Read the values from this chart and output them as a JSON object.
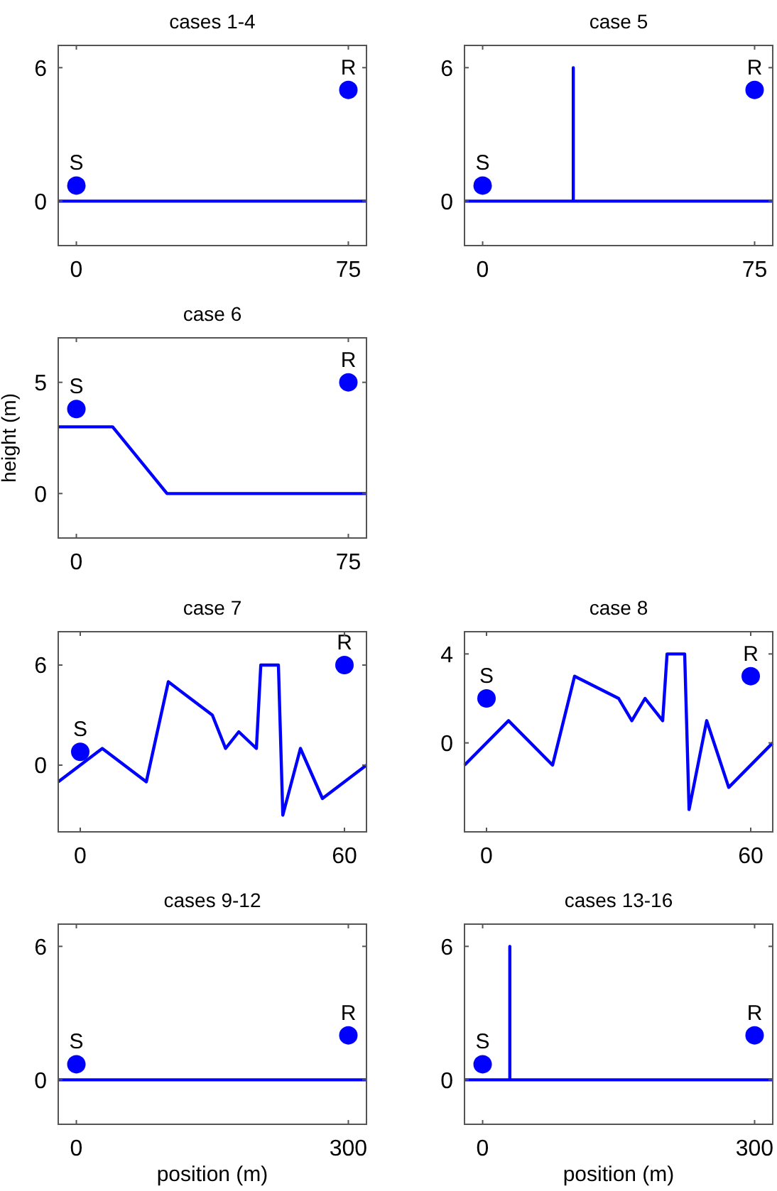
{
  "chart_data": [
    {
      "type": "line",
      "title": "cases 1-4",
      "xlim": [
        -5,
        80
      ],
      "ylim": [
        -2,
        7
      ],
      "xticks": [
        0,
        75
      ],
      "yticks": [
        0,
        6
      ],
      "series": [
        {
          "color": "#0000ff",
          "x": [
            -5,
            80
          ],
          "values": [
            0,
            0
          ]
        },
        {
          "type": "scatter",
          "color": "#0000ff",
          "marker": "circle",
          "x": [
            0,
            75
          ],
          "values": [
            0.7,
            5
          ]
        }
      ],
      "annotations": [
        {
          "text": "S",
          "x": 0,
          "y": 0.7
        },
        {
          "text": "R",
          "x": 75,
          "y": 5
        }
      ]
    },
    {
      "type": "line",
      "title": "case 5",
      "xlim": [
        -5,
        80
      ],
      "ylim": [
        -2,
        7
      ],
      "xticks": [
        0,
        75
      ],
      "yticks": [
        0,
        6
      ],
      "series": [
        {
          "color": "#0000ff",
          "x": [
            -5,
            25,
            25,
            25,
            80
          ],
          "values": [
            0,
            0,
            6,
            0,
            0
          ]
        },
        {
          "type": "scatter",
          "color": "#0000ff",
          "marker": "circle",
          "x": [
            0,
            75
          ],
          "values": [
            0.7,
            5
          ]
        }
      ],
      "annotations": [
        {
          "text": "S",
          "x": 0,
          "y": 0.7
        },
        {
          "text": "R",
          "x": 75,
          "y": 5
        }
      ]
    },
    {
      "type": "line",
      "title": "case 6",
      "ylabel": "height (m)",
      "xlim": [
        -5,
        80
      ],
      "ylim": [
        -2,
        7
      ],
      "xticks": [
        0,
        75
      ],
      "yticks": [
        0,
        5
      ],
      "series": [
        {
          "color": "#0000ff",
          "x": [
            -5,
            10,
            25,
            80
          ],
          "values": [
            3,
            3,
            0,
            0
          ]
        },
        {
          "type": "scatter",
          "color": "#0000ff",
          "marker": "circle",
          "x": [
            0,
            75
          ],
          "values": [
            3.8,
            5
          ]
        }
      ],
      "annotations": [
        {
          "text": "S",
          "x": 0,
          "y": 3.8
        },
        {
          "text": "R",
          "x": 75,
          "y": 5
        }
      ]
    },
    {
      "type": "line",
      "title": "case 7",
      "xlim": [
        -5,
        65
      ],
      "ylim": [
        -4,
        8
      ],
      "xticks": [
        0,
        60
      ],
      "yticks": [
        0,
        6
      ],
      "series": [
        {
          "color": "#0000ff",
          "x": [
            -5,
            5,
            15,
            20,
            30,
            33,
            36,
            40,
            41,
            45,
            46,
            50,
            55,
            65
          ],
          "values": [
            -1,
            1,
            -1,
            5,
            3,
            1,
            2,
            1,
            6,
            6,
            -3,
            1,
            -2,
            0
          ]
        },
        {
          "type": "scatter",
          "color": "#0000ff",
          "marker": "circle",
          "x": [
            0,
            60
          ],
          "values": [
            0.8,
            6
          ]
        }
      ],
      "annotations": [
        {
          "text": "S",
          "x": 0,
          "y": 0.8
        },
        {
          "text": "R",
          "x": 60,
          "y": 6
        }
      ]
    },
    {
      "type": "line",
      "title": "case 8",
      "xlim": [
        -5,
        65
      ],
      "ylim": [
        -4,
        5
      ],
      "xticks": [
        0,
        60
      ],
      "yticks": [
        0,
        4
      ],
      "series": [
        {
          "color": "#0000ff",
          "x": [
            -5,
            5,
            15,
            20,
            30,
            33,
            36,
            40,
            41,
            45,
            46,
            50,
            55,
            65
          ],
          "values": [
            -1,
            1,
            -1,
            3,
            2,
            1,
            2,
            1,
            4,
            4,
            -3,
            1,
            -2,
            0
          ]
        },
        {
          "type": "scatter",
          "color": "#0000ff",
          "marker": "circle",
          "x": [
            0,
            60
          ],
          "values": [
            2,
            3
          ]
        }
      ],
      "annotations": [
        {
          "text": "S",
          "x": 0,
          "y": 2
        },
        {
          "text": "R",
          "x": 60,
          "y": 3
        }
      ]
    },
    {
      "type": "line",
      "title": "cases 9-12",
      "xlabel": "position (m)",
      "xlim": [
        -20,
        320
      ],
      "ylim": [
        -2,
        7
      ],
      "xticks": [
        0,
        300
      ],
      "yticks": [
        0,
        6
      ],
      "series": [
        {
          "color": "#0000ff",
          "x": [
            -20,
            320
          ],
          "values": [
            0,
            0
          ]
        },
        {
          "type": "scatter",
          "color": "#0000ff",
          "marker": "circle",
          "x": [
            0,
            300
          ],
          "values": [
            0.7,
            2
          ]
        }
      ],
      "annotations": [
        {
          "text": "S",
          "x": 0,
          "y": 0.7
        },
        {
          "text": "R",
          "x": 300,
          "y": 2
        }
      ]
    },
    {
      "type": "line",
      "title": "cases 13-16",
      "xlabel": "position (m)",
      "xlim": [
        -20,
        320
      ],
      "ylim": [
        -2,
        7
      ],
      "xticks": [
        0,
        300
      ],
      "yticks": [
        0,
        6
      ],
      "series": [
        {
          "color": "#0000ff",
          "x": [
            -20,
            30,
            30,
            30,
            320
          ],
          "values": [
            0,
            0,
            6,
            0,
            0
          ]
        },
        {
          "type": "scatter",
          "color": "#0000ff",
          "marker": "circle",
          "x": [
            0,
            300
          ],
          "values": [
            0.7,
            2
          ]
        }
      ],
      "annotations": [
        {
          "text": "S",
          "x": 0,
          "y": 0.7
        },
        {
          "text": "R",
          "x": 300,
          "y": 2
        }
      ]
    }
  ]
}
